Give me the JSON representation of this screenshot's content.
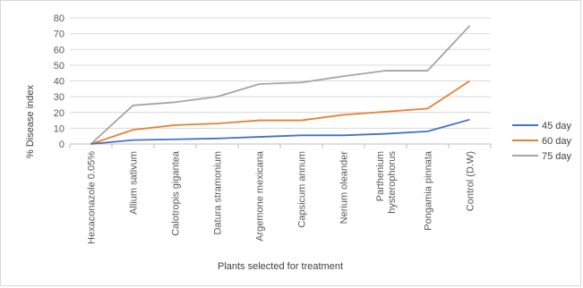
{
  "chart_data": {
    "type": "line",
    "xlabel": "Plants selected for treatment",
    "ylabel": "% Disease index",
    "ylim": [
      0,
      80
    ],
    "ytick_step": 10,
    "grid": true,
    "legend": "right",
    "categories": [
      "Hexaconazole 0.05%",
      "Allium sativum",
      "Calotropis gigantea",
      "Datura stramonium",
      "Argemone mexicana",
      "Capsicum annum",
      "Nerium oleander",
      "Parthenium hysterophorus",
      "Pongamia pinnata",
      "Control (D.W)"
    ],
    "series": [
      {
        "name": "45 day",
        "color": "#4472c4",
        "values": [
          0,
          2.5,
          3,
          3.5,
          4.5,
          5.5,
          5.5,
          6.5,
          8,
          15.5
        ]
      },
      {
        "name": "60 day",
        "color": "#ed7d31",
        "values": [
          0,
          9,
          12,
          13,
          15,
          15,
          18.5,
          20.5,
          22.5,
          40
        ]
      },
      {
        "name": "75 day",
        "color": "#a5a5a5",
        "values": [
          0,
          24.5,
          26.5,
          30,
          38,
          39,
          43,
          46.5,
          46.5,
          75
        ]
      }
    ]
  }
}
